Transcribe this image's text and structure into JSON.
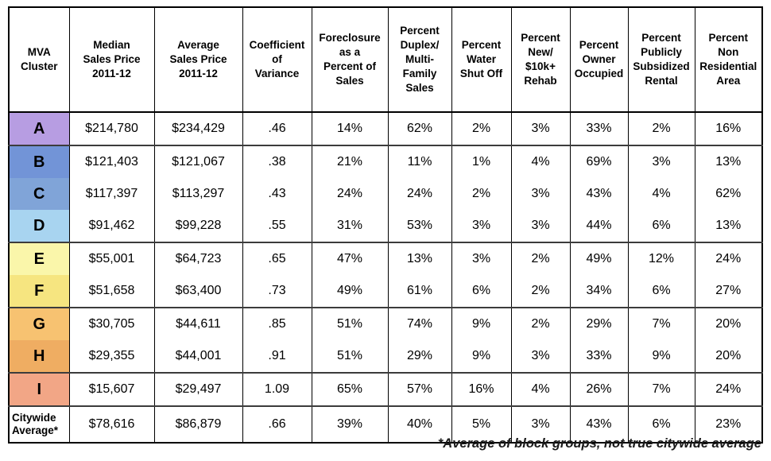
{
  "chart_data": {
    "type": "table",
    "columns": [
      "MVA\nCluster",
      "Median\nSales Price\n2011-12",
      "Average\nSales Price\n2011-12",
      "Coefficient\nof\nVariance",
      "Foreclosure\nas a\nPercent of\nSales",
      "Percent\nDuplex/\nMulti-\nFamily\nSales",
      "Percent\nWater\nShut Off",
      "Percent\nNew/\n$10k+\nRehab",
      "Percent\nOwner\nOccupied",
      "Percent\nPublicly\nSubsidized\nRental",
      "Percent\nNon\nResidential\nArea"
    ],
    "rows": [
      {
        "cluster": "A",
        "values": [
          "$214,780",
          "$234,429",
          ".46",
          "14%",
          "62%",
          "2%",
          "3%",
          "33%",
          "2%",
          "16%"
        ],
        "group_end": true
      },
      {
        "cluster": "B",
        "values": [
          "$121,403",
          "$121,067",
          ".38",
          "21%",
          "11%",
          "1%",
          "4%",
          "69%",
          "3%",
          "13%"
        ],
        "group_end": false
      },
      {
        "cluster": "C",
        "values": [
          "$117,397",
          "$113,297",
          ".43",
          "24%",
          "24%",
          "2%",
          "3%",
          "43%",
          "4%",
          "62%"
        ],
        "group_end": false
      },
      {
        "cluster": "D",
        "values": [
          "$91,462",
          "$99,228",
          ".55",
          "31%",
          "53%",
          "3%",
          "3%",
          "44%",
          "6%",
          "13%"
        ],
        "group_end": true
      },
      {
        "cluster": "E",
        "values": [
          "$55,001",
          "$64,723",
          ".65",
          "47%",
          "13%",
          "3%",
          "2%",
          "49%",
          "12%",
          "24%"
        ],
        "group_end": false
      },
      {
        "cluster": "F",
        "values": [
          "$51,658",
          "$63,400",
          ".73",
          "49%",
          "61%",
          "6%",
          "2%",
          "34%",
          "6%",
          "27%"
        ],
        "group_end": true
      },
      {
        "cluster": "G",
        "values": [
          "$30,705",
          "$44,611",
          ".85",
          "51%",
          "74%",
          "9%",
          "2%",
          "29%",
          "7%",
          "20%"
        ],
        "group_end": false
      },
      {
        "cluster": "H",
        "values": [
          "$29,355",
          "$44,001",
          ".91",
          "51%",
          "29%",
          "9%",
          "3%",
          "33%",
          "9%",
          "20%"
        ],
        "group_end": true
      },
      {
        "cluster": "I",
        "values": [
          "$15,607",
          "$29,497",
          "1.09",
          "65%",
          "57%",
          "16%",
          "4%",
          "26%",
          "7%",
          "24%"
        ],
        "group_end": true
      },
      {
        "cluster": "Citywide\nAverage*",
        "values": [
          "$78,616",
          "$86,879",
          ".66",
          "39%",
          "40%",
          "5%",
          "3%",
          "43%",
          "6%",
          "23%"
        ],
        "group_end": false,
        "summary": true
      }
    ],
    "footnote": "*Average of block groups, not true citywide average"
  },
  "style": {
    "cluster_colors": {
      "A": "#b79de2",
      "B": "#7294d7",
      "C": "#80a4d8",
      "D": "#a8d4f0",
      "E": "#faf6aa",
      "F": "#f6e580",
      "G": "#f7c271",
      "H": "#efad62",
      "I": "#f2a686"
    },
    "group_separator_color": "#3c3c3c",
    "border_color": "#000000"
  }
}
